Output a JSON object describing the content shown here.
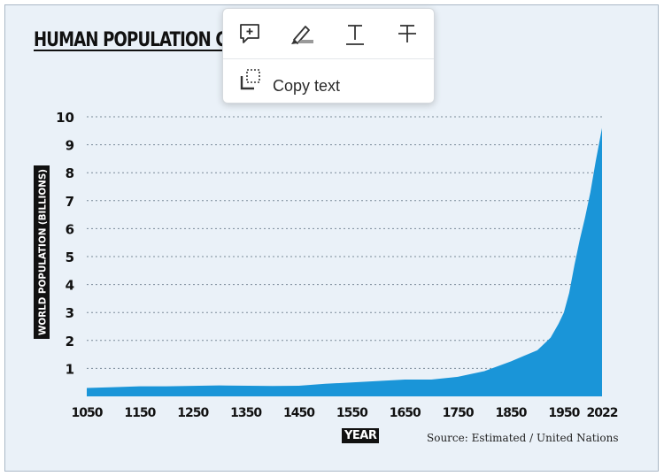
{
  "chart_title": "HUMAN POPULATION GR",
  "source": "Source: Estimated / United Nations",
  "popup": {
    "tools": [
      {
        "name": "add-comment",
        "icon": "comment-plus-icon"
      },
      {
        "name": "highlight",
        "icon": "highlighter-icon"
      },
      {
        "name": "underline",
        "icon": "text-underline-icon"
      },
      {
        "name": "strikethrough",
        "icon": "text-strikethrough-icon"
      }
    ],
    "copy_label": "Copy text",
    "copy_icon": "copy-text-icon"
  },
  "chart_data": {
    "type": "area",
    "title": "HUMAN POPULATION GR",
    "xlabel": "YEAR",
    "ylabel": "WORLD POPULATION (BILLIONS)",
    "x_ticks": [
      1050,
      1150,
      1250,
      1350,
      1450,
      1550,
      1650,
      1750,
      1850,
      1950,
      2022
    ],
    "y_ticks": [
      1,
      2,
      3,
      4,
      5,
      6,
      7,
      8,
      9,
      10
    ],
    "ylim": [
      0,
      10
    ],
    "xlim": [
      1050,
      2022
    ],
    "grid": "horizontal dotted",
    "color": "#1a95d8",
    "x": [
      1050,
      1100,
      1150,
      1200,
      1300,
      1400,
      1450,
      1500,
      1550,
      1600,
      1650,
      1700,
      1750,
      1800,
      1850,
      1875,
      1900,
      1925,
      1940,
      1950,
      1960,
      1970,
      1980,
      1990,
      2000,
      2010,
      2022
    ],
    "values": [
      0.3,
      0.33,
      0.36,
      0.36,
      0.39,
      0.37,
      0.38,
      0.45,
      0.5,
      0.55,
      0.6,
      0.6,
      0.7,
      0.9,
      1.25,
      1.45,
      1.65,
      2.1,
      2.6,
      3.0,
      3.7,
      4.7,
      5.6,
      6.4,
      7.3,
      8.4,
      9.6
    ]
  }
}
